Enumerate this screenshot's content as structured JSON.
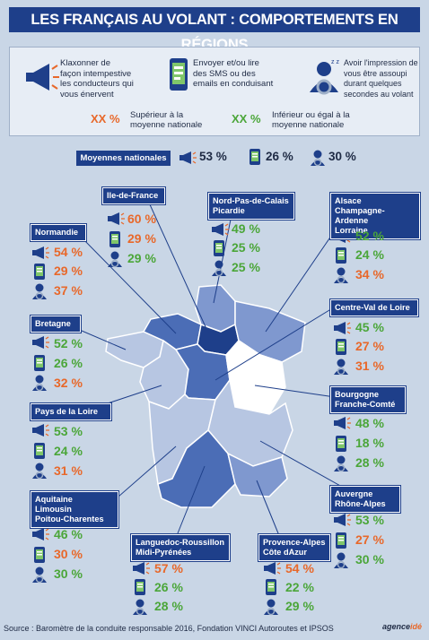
{
  "title": "LES FRANÇAIS AU VOLANT : COMPORTEMENTS EN RÉGIONS",
  "legend": {
    "horn_text": "Klaxonner de\nfaçon intempestive\nles conducteurs qui\nvous énervent",
    "phone_text": "Envoyer et/ou lire\ndes SMS ou des\nemails en conduisant",
    "drowsy_text": "Avoir l'impression de\nvous être assoupi\ndurant quelques\nsecondes au volant",
    "superior_xx": "XX %",
    "superior_label": "Supérieur à la\nmoyenne nationale",
    "inferior_xx": "XX %",
    "inferior_label": "Inférieur ou égal à la\nmoyenne nationale"
  },
  "national": {
    "label": "Moyennes nationales",
    "horn": "53 %",
    "phone": "26 %",
    "drowsy": "30 %"
  },
  "regions": {
    "idf": {
      "name": "Ile-de-France",
      "horn": "60 %",
      "phone": "29 %",
      "drowsy": "29 %"
    },
    "npc": {
      "name": "Nord-Pas-de-Calais\nPicardie",
      "horn": "49 %",
      "phone": "25 %",
      "drowsy": "25 %"
    },
    "acal": {
      "name": "Alsace\nChampagne-Ardenne\nLorraine",
      "horn": "52 %",
      "phone": "24 %",
      "drowsy": "34 %"
    },
    "norm": {
      "name": "Normandie",
      "horn": "54 %",
      "phone": "29 %",
      "drowsy": "37 %"
    },
    "cvl": {
      "name": "Centre-Val de Loire",
      "horn": "45 %",
      "phone": "27 %",
      "drowsy": "31 %"
    },
    "bret": {
      "name": "Bretagne",
      "horn": "52 %",
      "phone": "26 %",
      "drowsy": "32 %"
    },
    "bfc": {
      "name": "Bourgogne\nFranche-Comté",
      "horn": "48 %",
      "phone": "18 %",
      "drowsy": "28 %"
    },
    "pdl": {
      "name": "Pays de la Loire",
      "horn": "53 %",
      "phone": "24 %",
      "drowsy": "31 %"
    },
    "ara": {
      "name": "Auvergne\nRhône-Alpes",
      "horn": "53 %",
      "phone": "27 %",
      "drowsy": "30 %"
    },
    "alpc": {
      "name": "Aquitaine\nLimousin\nPoitou-Charentes",
      "horn": "46 %",
      "phone": "30 %",
      "drowsy": "30 %"
    },
    "lrmp": {
      "name": "Languedoc-Roussillon\nMidi-Pyrénées",
      "horn": "57 %",
      "phone": "26 %",
      "drowsy": "28 %"
    },
    "paca": {
      "name": "Provence-Alpes\nCôte dAzur",
      "horn": "54 %",
      "phone": "22 %",
      "drowsy": "29 %"
    }
  },
  "colors": {
    "dark_blue": "#1e3f8a",
    "orange": "#e8682a",
    "green": "#4ba639",
    "background": "#c9d6e6"
  },
  "source": "Source : Baromètre de la conduite responsable 2016, Fondation VINCI Autoroutes et IPSOS",
  "logo": "agence"
}
